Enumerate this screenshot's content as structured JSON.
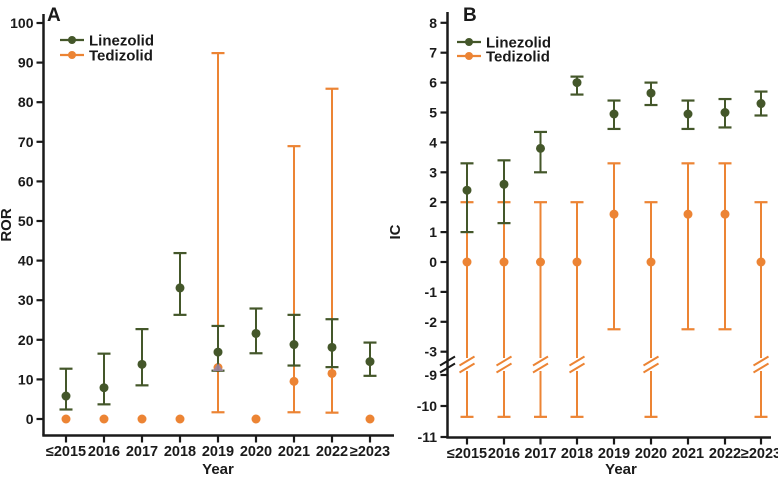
{
  "figure": {
    "background": "#ffffff",
    "axis_color": "#1a1a1a",
    "accent_green": "#44572a",
    "accent_orange": "#ec8434",
    "overlap_marker_color": "#9b85a3"
  },
  "chart_data": [
    {
      "type": "scatter",
      "panel_label": "A",
      "xlabel": "Year",
      "ylabel": "ROR",
      "grid": false,
      "legend_position": "top-left",
      "legend": [
        "Linezolid",
        "Tedizolid"
      ],
      "categories": [
        "≤2015",
        "2016",
        "2017",
        "2018",
        "2019",
        "2020",
        "2021",
        "2022",
        "≥2023"
      ],
      "yticks": [
        0,
        10,
        20,
        30,
        40,
        50,
        60,
        70,
        80,
        90,
        100
      ],
      "ylim": [
        -4,
        105
      ],
      "series": [
        {
          "name": "Linezolid",
          "color": "#44572a",
          "points": [
            {
              "y": 5.8,
              "lo": 2.4,
              "hi": 12.7
            },
            {
              "y": 7.9,
              "lo": 3.7,
              "hi": 16.5
            },
            {
              "y": 13.8,
              "lo": 8.5,
              "hi": 22.7
            },
            {
              "y": 33.1,
              "lo": 26.3,
              "hi": 41.9
            },
            {
              "y": 16.9,
              "lo": 12.2,
              "hi": 23.5
            },
            {
              "y": 21.6,
              "lo": 16.6,
              "hi": 27.9
            },
            {
              "y": 18.8,
              "lo": 13.5,
              "hi": 26.3
            },
            {
              "y": 18.1,
              "lo": 13.1,
              "hi": 25.2
            },
            {
              "y": 14.5,
              "lo": 10.9,
              "hi": 19.3
            }
          ]
        },
        {
          "name": "Tedizolid",
          "color": "#ec8434",
          "points": [
            {
              "y": 0
            },
            {
              "y": 0
            },
            {
              "y": 0
            },
            {
              "y": 0
            },
            {
              "y": 13.0,
              "lo": 1.7,
              "hi": 92.4
            },
            {
              "y": 0
            },
            {
              "y": 9.5,
              "lo": 1.7,
              "hi": 68.9
            },
            {
              "y": 11.5,
              "lo": 1.6,
              "hi": 83.4
            },
            {
              "y": 0
            }
          ]
        }
      ],
      "annotations": [
        {
          "name": "overlap-marker",
          "category": "2019",
          "y": 13.0,
          "shape": "triangle",
          "color": "#9b85a3"
        }
      ]
    },
    {
      "type": "scatter",
      "panel_label": "B",
      "xlabel": "Year",
      "ylabel": "IC",
      "grid": false,
      "legend_position": "top-left",
      "legend": [
        "Linezolid",
        "Tedizolid"
      ],
      "categories": [
        "≤2015",
        "2016",
        "2017",
        "2018",
        "2019",
        "2020",
        "2021",
        "2022",
        "≥2023"
      ],
      "yticks_upper": [
        8,
        7,
        6,
        5,
        4,
        3,
        2,
        1,
        0,
        -1,
        -2,
        -3
      ],
      "yticks_lower": [
        -9,
        -10,
        -11
      ],
      "axis_break_between": [
        -3,
        -9
      ],
      "ylim": [
        -11,
        8.5
      ],
      "series": [
        {
          "name": "Linezolid",
          "color": "#44572a",
          "points": [
            {
              "y": 2.4,
              "lo": 1.0,
              "hi": 3.3
            },
            {
              "y": 2.6,
              "lo": 1.3,
              "hi": 3.4
            },
            {
              "y": 3.8,
              "lo": 3.0,
              "hi": 4.35
            },
            {
              "y": 6.0,
              "lo": 5.6,
              "hi": 6.2
            },
            {
              "y": 4.95,
              "lo": 4.45,
              "hi": 5.4
            },
            {
              "y": 5.65,
              "lo": 5.25,
              "hi": 6.0
            },
            {
              "y": 4.95,
              "lo": 4.45,
              "hi": 5.4
            },
            {
              "y": 5.0,
              "lo": 4.5,
              "hi": 5.45
            },
            {
              "y": 5.3,
              "lo": 4.9,
              "hi": 5.7
            }
          ]
        },
        {
          "name": "Tedizolid",
          "color": "#ec8434",
          "points": [
            {
              "y": 0,
              "lo": -10.35,
              "hi": 2.0,
              "broken": true
            },
            {
              "y": 0,
              "lo": -10.35,
              "hi": 2.0,
              "broken": true
            },
            {
              "y": 0,
              "lo": -10.35,
              "hi": 2.0,
              "broken": true
            },
            {
              "y": 0,
              "lo": -10.35,
              "hi": 2.0,
              "broken": true
            },
            {
              "y": 1.6,
              "lo": -2.25,
              "hi": 3.3
            },
            {
              "y": 0,
              "lo": -10.35,
              "hi": 2.0,
              "broken": true
            },
            {
              "y": 1.6,
              "lo": -2.25,
              "hi": 3.3
            },
            {
              "y": 1.6,
              "lo": -2.25,
              "hi": 3.3
            },
            {
              "y": 0,
              "lo": -10.35,
              "hi": 2.0,
              "broken": true
            }
          ]
        }
      ]
    }
  ]
}
